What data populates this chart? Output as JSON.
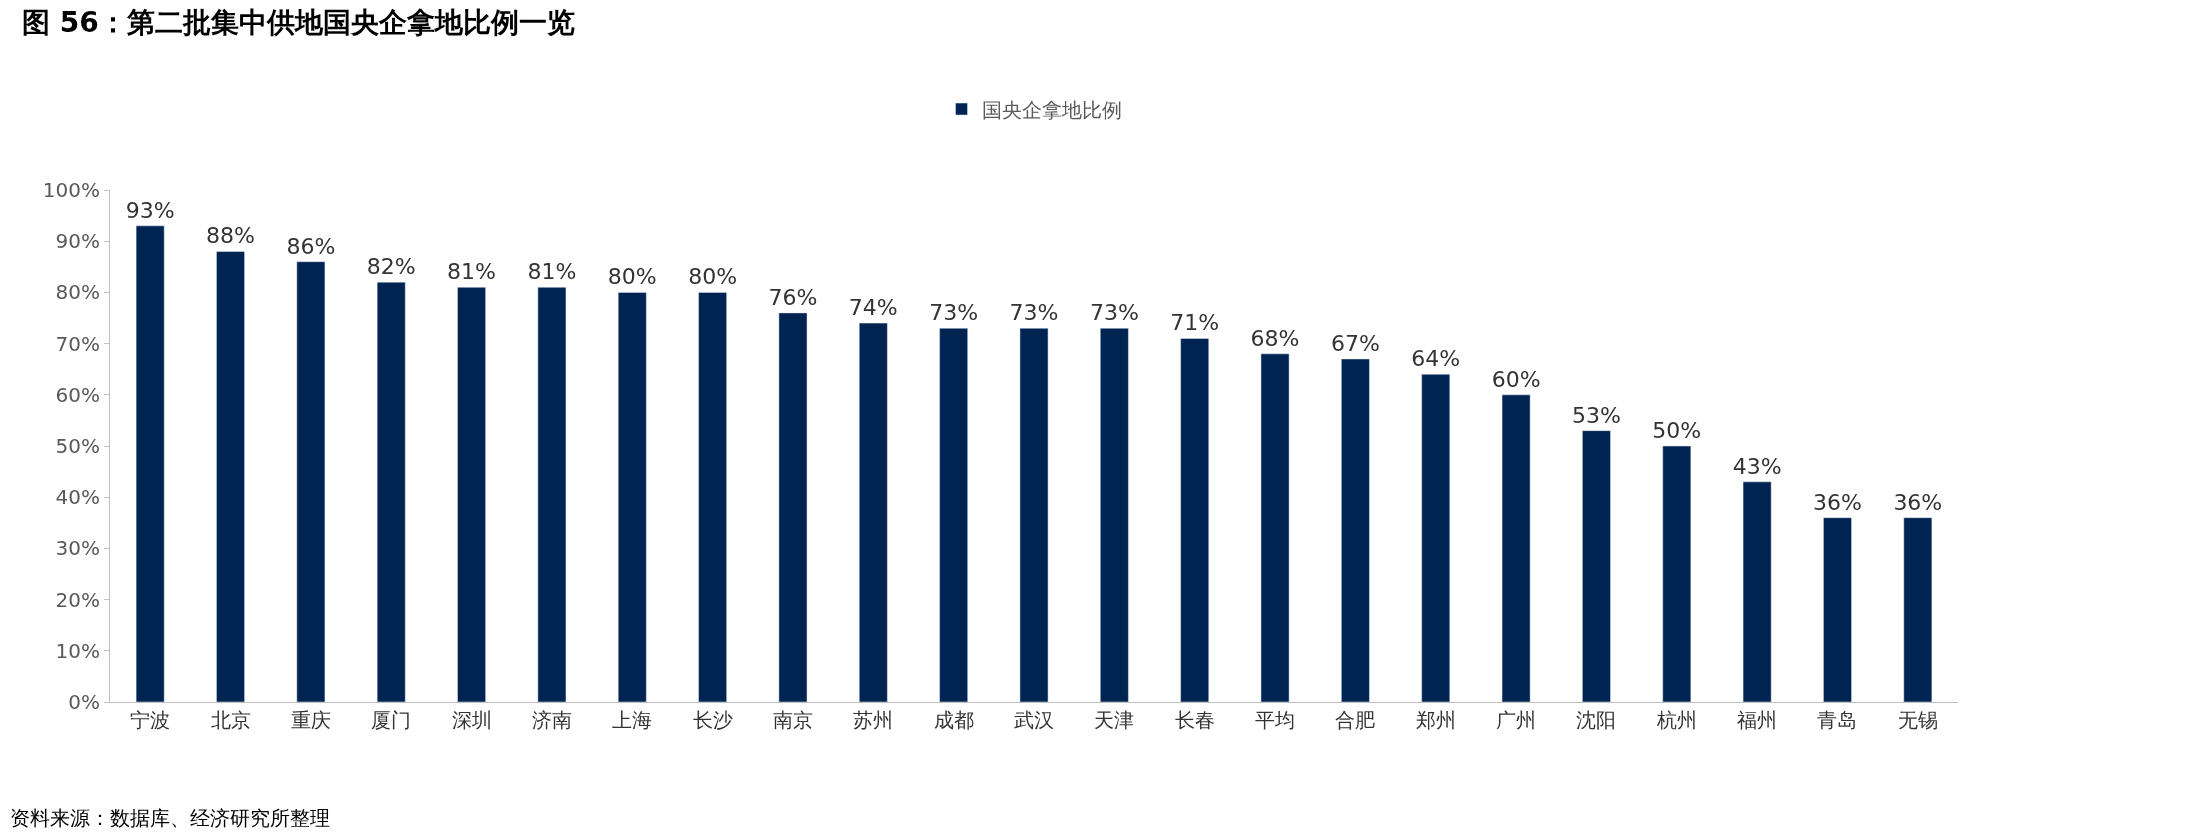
{
  "chart_data": {
    "type": "bar",
    "title": "图 56：第二批集中供地国央企拿地比例一览",
    "categories": [
      "宁波",
      "北京",
      "重庆",
      "厦门",
      "深圳",
      "济南",
      "上海",
      "长沙",
      "南京",
      "苏州",
      "成都",
      "武汉",
      "天津",
      "长春",
      "平均",
      "合肥",
      "郑州",
      "广州",
      "沈阳",
      "杭州",
      "福州",
      "青岛",
      "无锡"
    ],
    "series": [
      {
        "name": "国央企拿地比例",
        "color": "#002451",
        "values": [
          93,
          88,
          86,
          82,
          81,
          81,
          80,
          80,
          76,
          74,
          73,
          73,
          73,
          71,
          68,
          67,
          64,
          60,
          53,
          50,
          43,
          36,
          36
        ],
        "value_labels": [
          "93%",
          "88%",
          "86%",
          "82%",
          "81%",
          "81%",
          "80%",
          "80%",
          "76%",
          "74%",
          "73%",
          "73%",
          "73%",
          "71%",
          "68%",
          "67%",
          "64%",
          "60%",
          "53%",
          "50%",
          "43%",
          "36%",
          "36%"
        ]
      }
    ],
    "ylim": [
      0,
      100
    ],
    "yticks": [
      {
        "value": 0,
        "label": "0%"
      },
      {
        "value": 10,
        "label": "10%"
      },
      {
        "value": 20,
        "label": "20%"
      },
      {
        "value": 30,
        "label": "30%"
      },
      {
        "value": 40,
        "label": "40%"
      },
      {
        "value": 50,
        "label": "50%"
      },
      {
        "value": 60,
        "label": "60%"
      },
      {
        "value": 70,
        "label": "70%"
      },
      {
        "value": 80,
        "label": "80%"
      },
      {
        "value": 90,
        "label": "90%"
      },
      {
        "value": 100,
        "label": "100%"
      }
    ],
    "legend": "top",
    "annotations": [
      "资料来源：数据库、经济研究所整理"
    ]
  }
}
